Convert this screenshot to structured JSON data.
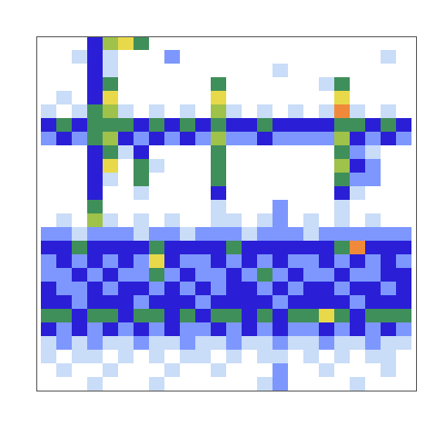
{
  "chart_data": {
    "type": "heatmap",
    "tick_labels": false,
    "cells": [
      [
        0,
        0,
        0,
        3,
        5,
        6,
        4,
        0,
        0,
        0,
        0,
        0,
        0,
        0,
        0,
        0,
        0,
        0,
        0,
        0,
        0,
        0,
        0,
        0
      ],
      [
        0,
        0,
        1,
        3,
        1,
        0,
        0,
        0,
        2,
        0,
        0,
        0,
        0,
        0,
        0,
        0,
        0,
        0,
        0,
        0,
        0,
        0,
        1,
        0
      ],
      [
        0,
        0,
        0,
        3,
        1,
        0,
        0,
        0,
        0,
        0,
        0,
        0,
        0,
        0,
        0,
        1,
        0,
        0,
        0,
        0,
        0,
        0,
        0,
        0
      ],
      [
        0,
        0,
        0,
        3,
        4,
        0,
        0,
        0,
        0,
        0,
        0,
        4,
        0,
        0,
        0,
        0,
        0,
        0,
        1,
        4,
        0,
        0,
        0,
        0
      ],
      [
        0,
        1,
        0,
        3,
        6,
        0,
        0,
        0,
        0,
        0,
        0,
        6,
        0,
        0,
        0,
        0,
        0,
        0,
        0,
        6,
        0,
        0,
        0,
        0
      ],
      [
        1,
        0,
        1,
        4,
        5,
        1,
        0,
        1,
        0,
        1,
        0,
        5,
        1,
        0,
        1,
        0,
        1,
        0,
        1,
        7,
        1,
        0,
        1,
        0
      ],
      [
        3,
        4,
        3,
        4,
        4,
        4,
        3,
        4,
        3,
        4,
        3,
        4,
        3,
        3,
        4,
        3,
        3,
        3,
        3,
        4,
        4,
        3,
        4,
        3
      ],
      [
        2,
        3,
        2,
        4,
        5,
        3,
        2,
        3,
        2,
        3,
        2,
        5,
        2,
        2,
        3,
        2,
        2,
        2,
        2,
        5,
        3,
        2,
        3,
        2
      ],
      [
        0,
        0,
        0,
        3,
        4,
        1,
        3,
        0,
        0,
        0,
        0,
        4,
        0,
        0,
        0,
        0,
        0,
        0,
        0,
        4,
        2,
        1,
        0,
        0
      ],
      [
        0,
        0,
        0,
        3,
        6,
        0,
        4,
        1,
        0,
        0,
        0,
        4,
        0,
        0,
        0,
        0,
        0,
        0,
        0,
        5,
        3,
        2,
        0,
        0
      ],
      [
        0,
        0,
        0,
        3,
        1,
        0,
        4,
        0,
        0,
        0,
        0,
        4,
        0,
        0,
        0,
        0,
        0,
        0,
        0,
        4,
        2,
        2,
        0,
        0
      ],
      [
        0,
        0,
        0,
        3,
        0,
        0,
        1,
        0,
        0,
        0,
        0,
        3,
        0,
        0,
        0,
        0,
        0,
        0,
        0,
        3,
        1,
        0,
        0,
        0
      ],
      [
        0,
        0,
        0,
        4,
        0,
        0,
        0,
        0,
        0,
        0,
        0,
        1,
        0,
        0,
        0,
        2,
        0,
        0,
        0,
        1,
        0,
        0,
        0,
        0
      ],
      [
        0,
        1,
        0,
        5,
        1,
        0,
        1,
        0,
        1,
        0,
        0,
        1,
        1,
        0,
        1,
        2,
        0,
        1,
        0,
        1,
        0,
        1,
        0,
        0
      ],
      [
        2,
        2,
        1,
        2,
        2,
        2,
        1,
        2,
        2,
        1,
        2,
        2,
        2,
        1,
        2,
        2,
        2,
        1,
        2,
        2,
        2,
        2,
        2,
        2
      ],
      [
        3,
        3,
        4,
        3,
        3,
        3,
        3,
        4,
        3,
        3,
        3,
        3,
        4,
        3,
        3,
        3,
        3,
        3,
        3,
        4,
        7,
        3,
        3,
        3
      ],
      [
        2,
        3,
        2,
        3,
        2,
        3,
        2,
        6,
        3,
        2,
        2,
        3,
        2,
        3,
        2,
        3,
        2,
        2,
        3,
        2,
        3,
        2,
        3,
        2
      ],
      [
        2,
        2,
        3,
        2,
        3,
        2,
        2,
        4,
        2,
        3,
        2,
        2,
        3,
        2,
        4,
        2,
        3,
        2,
        2,
        3,
        2,
        2,
        3,
        3
      ],
      [
        3,
        2,
        2,
        3,
        2,
        3,
        3,
        2,
        3,
        2,
        3,
        2,
        3,
        3,
        2,
        3,
        2,
        3,
        3,
        2,
        3,
        3,
        2,
        3
      ],
      [
        3,
        3,
        2,
        3,
        3,
        3,
        2,
        3,
        3,
        3,
        2,
        3,
        3,
        3,
        3,
        2,
        3,
        3,
        3,
        3,
        2,
        3,
        3,
        3
      ],
      [
        4,
        4,
        3,
        4,
        4,
        3,
        4,
        4,
        3,
        4,
        3,
        4,
        4,
        3,
        4,
        3,
        4,
        4,
        6,
        4,
        3,
        4,
        4,
        4
      ],
      [
        3,
        2,
        3,
        2,
        3,
        2,
        3,
        2,
        3,
        2,
        2,
        3,
        2,
        3,
        2,
        3,
        2,
        2,
        3,
        2,
        3,
        2,
        3,
        2
      ],
      [
        1,
        2,
        1,
        2,
        1,
        1,
        2,
        1,
        1,
        2,
        1,
        1,
        2,
        1,
        1,
        2,
        1,
        1,
        2,
        1,
        1,
        2,
        1,
        1
      ],
      [
        1,
        0,
        1,
        1,
        0,
        1,
        0,
        1,
        0,
        1,
        1,
        0,
        1,
        0,
        1,
        1,
        0,
        1,
        0,
        1,
        0,
        1,
        1,
        0
      ],
      [
        0,
        1,
        0,
        0,
        1,
        0,
        0,
        0,
        1,
        0,
        0,
        1,
        0,
        0,
        0,
        2,
        0,
        0,
        1,
        0,
        0,
        0,
        1,
        0
      ],
      [
        0,
        0,
        0,
        1,
        0,
        0,
        0,
        1,
        0,
        0,
        0,
        0,
        0,
        0,
        1,
        2,
        0,
        0,
        0,
        0,
        1,
        0,
        0,
        0
      ]
    ]
  }
}
